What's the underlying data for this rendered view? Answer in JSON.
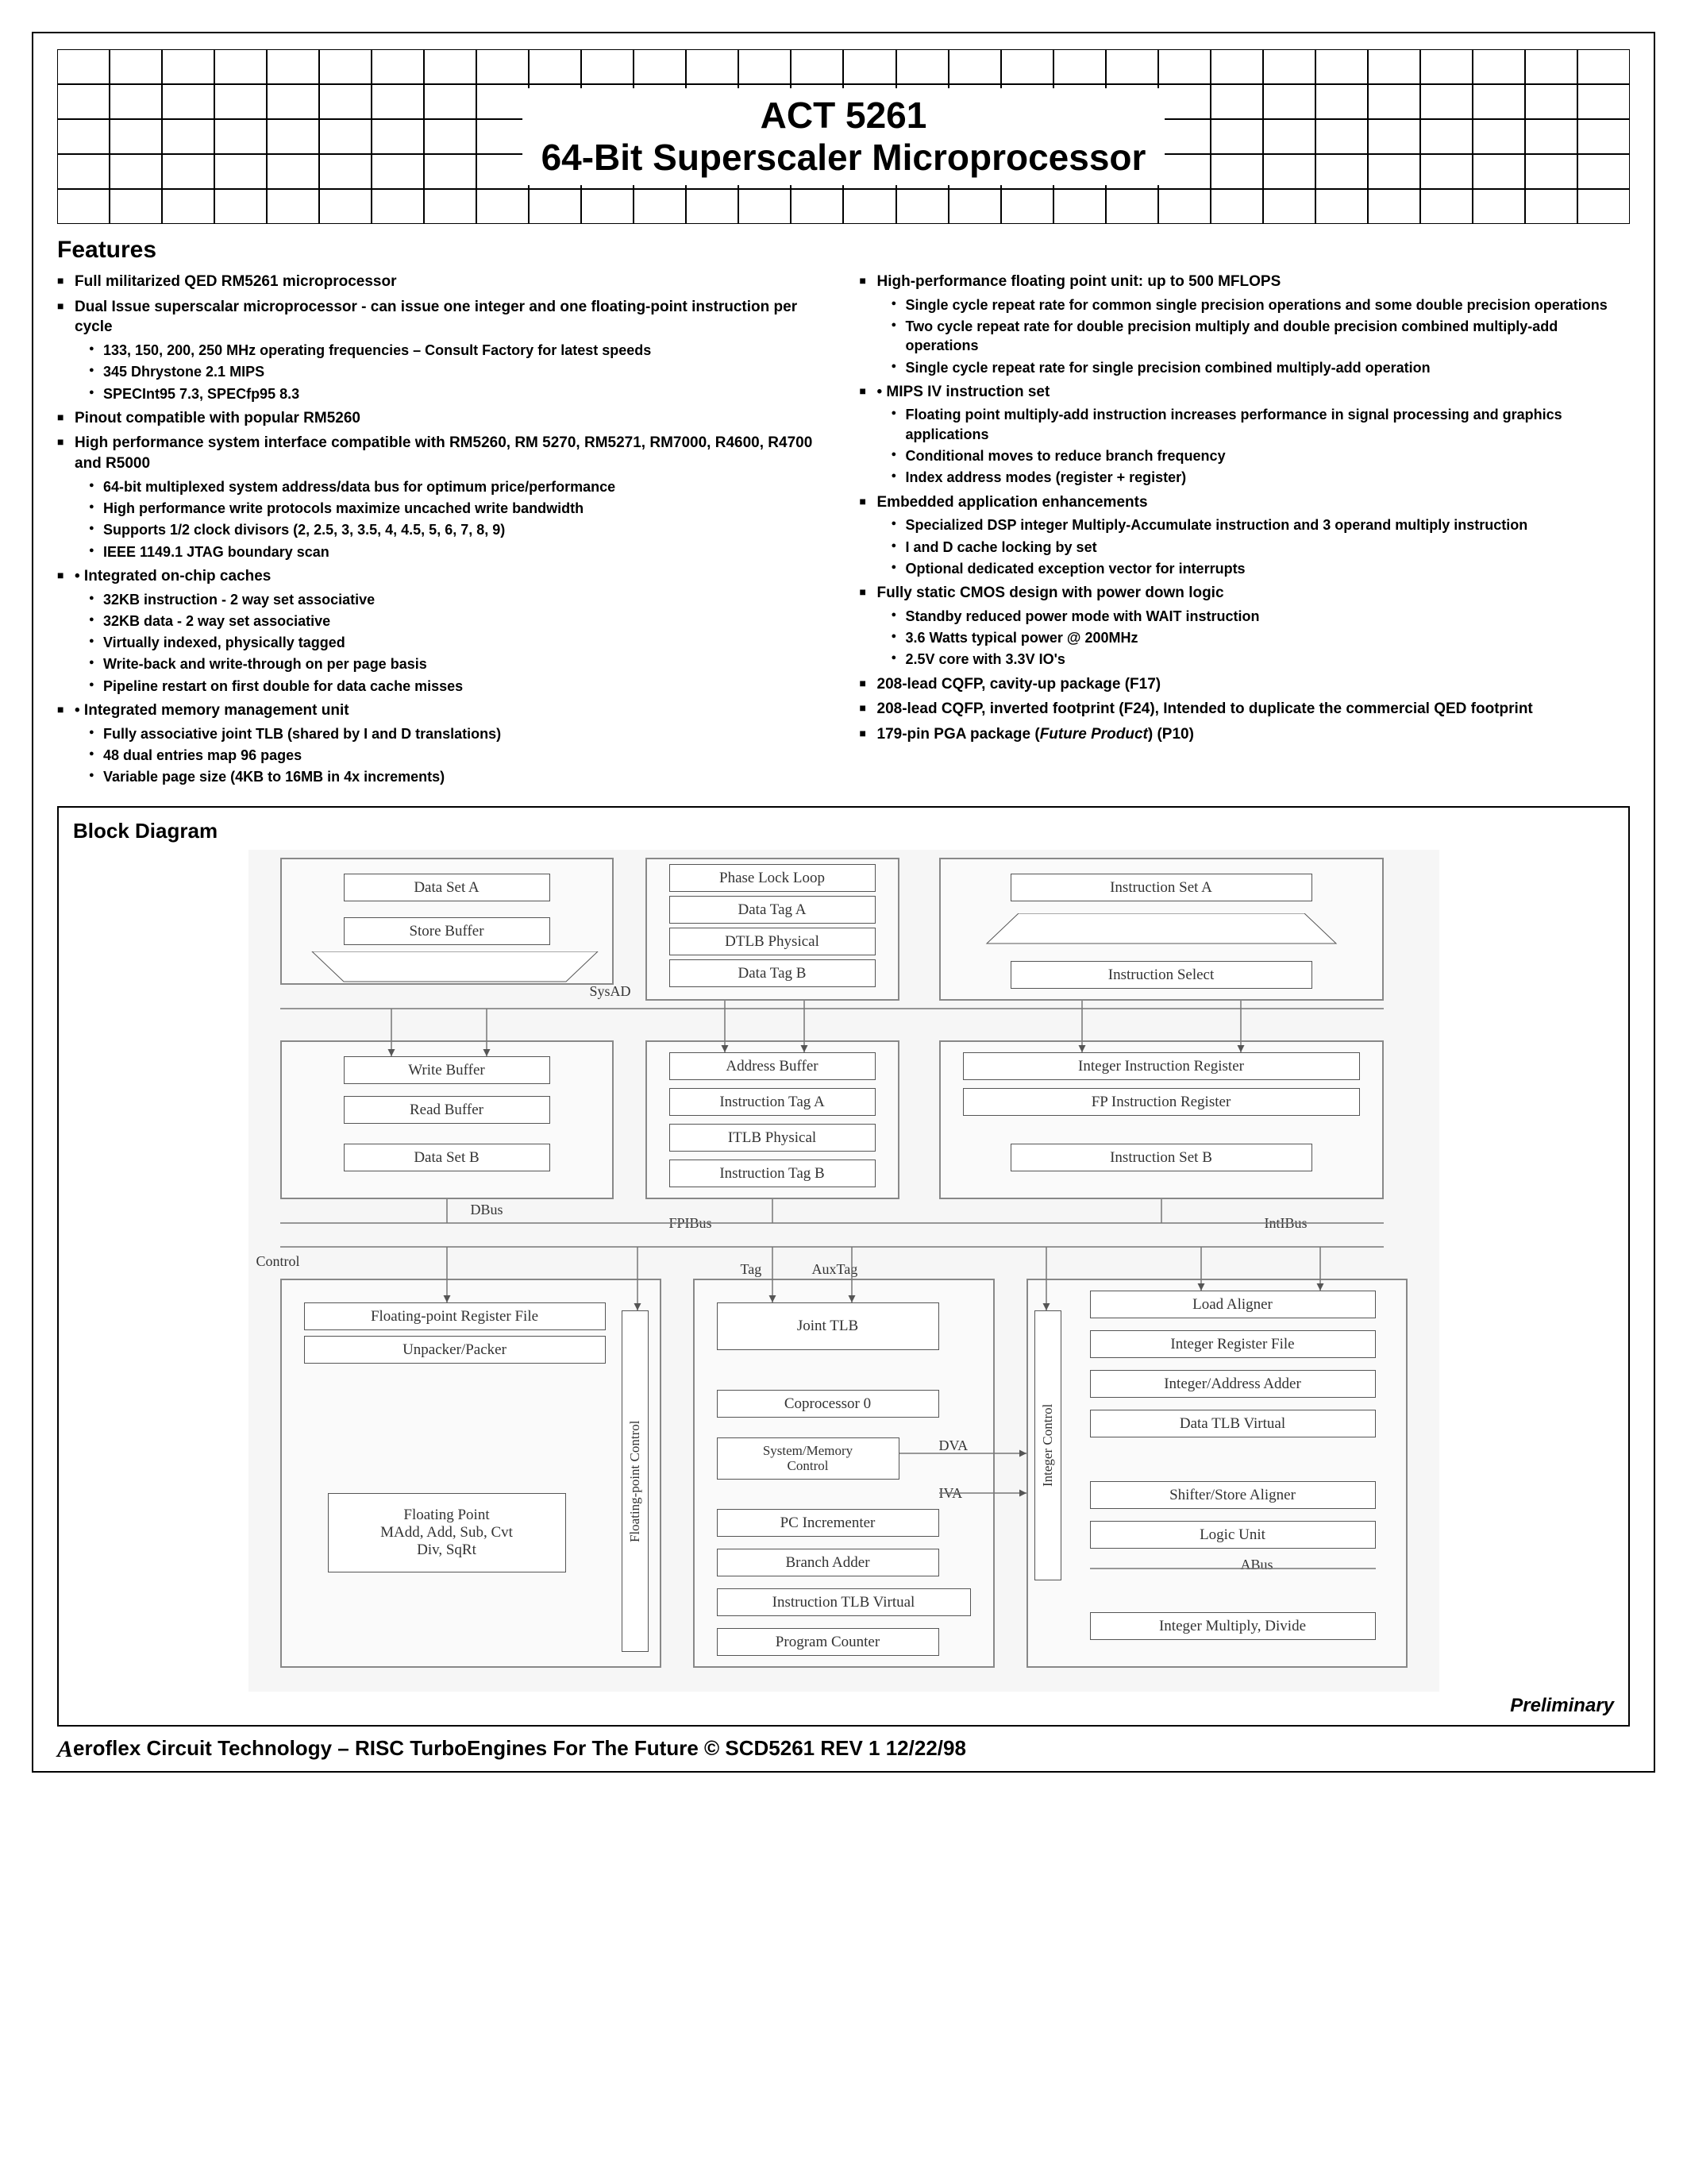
{
  "title": {
    "line1": "ACT 5261",
    "line2": "64-Bit Superscaler Microprocessor"
  },
  "features_heading": "Features",
  "left_column": [
    {
      "text": "Full militarized QED RM5261 microprocessor"
    },
    {
      "text": "Dual Issue superscalar microprocessor - can issue one integer and one floating-point instruction per cycle",
      "sub": [
        "133, 150, 200, 250 MHz operating frequencies – Consult Factory for latest speeds",
        "345 Dhrystone 2.1 MIPS",
        "SPECInt95 7.3, SPECfp95 8.3"
      ]
    },
    {
      "text": "Pinout compatible with popular RM5260"
    },
    {
      "text": "High performance system interface compatible with RM5260, RM 5270, RM5271, RM7000, R4600, R4700 and R5000",
      "sub": [
        "64-bit multiplexed system address/data bus for optimum price/performance",
        "High performance write protocols maximize uncached write bandwidth",
        "Supports 1/2 clock divisors (2, 2.5, 3, 3.5, 4, 4.5, 5, 6, 7, 8, 9)",
        "IEEE 1149.1 JTAG boundary scan"
      ]
    },
    {
      "text": "• Integrated on-chip caches",
      "sub": [
        "32KB instruction - 2 way set associative",
        "32KB data - 2 way set associative",
        "Virtually indexed, physically tagged",
        "Write-back and write-through on per page basis",
        "Pipeline restart on first double for data cache misses"
      ]
    },
    {
      "text": "• Integrated memory management unit",
      "sub": [
        "Fully associative joint TLB (shared by I and D translations)",
        "48 dual entries map 96 pages",
        "Variable page size (4KB to 16MB in 4x increments)"
      ]
    }
  ],
  "right_column": [
    {
      "text": "High-performance floating point unit: up to 500 MFLOPS",
      "sub": [
        "Single cycle repeat rate for common single precision operations and some double precision operations",
        "Two cycle repeat rate for double precision multiply and double precision combined multiply-add operations",
        "Single cycle repeat rate for single precision combined multiply-add operation"
      ]
    },
    {
      "text": "• MIPS IV instruction set",
      "sub": [
        "Floating point multiply-add instruction increases performance in signal processing and graphics applications",
        "Conditional moves to reduce branch frequency",
        "Index address modes (register + register)"
      ]
    },
    {
      "text": "Embedded application enhancements",
      "sub": [
        "Specialized DSP integer Multiply-Accumulate instruction and 3 operand multiply instruction",
        "I and D cache locking by set",
        "Optional dedicated exception vector for interrupts"
      ]
    },
    {
      "text": "Fully static CMOS design with power down logic",
      "sub": [
        "Standby reduced power mode with WAIT instruction",
        "3.6 Watts typical power @ 200MHz",
        "2.5V core with 3.3V IO's"
      ]
    },
    {
      "text": "208-lead CQFP, cavity-up package (F17)"
    },
    {
      "text": "208-lead CQFP, inverted footprint (F24), Intended to duplicate the commercial QED footprint"
    },
    {
      "text_html": "179-pin PGA package (<span class='italic'>Future Product</span>) (P10)"
    }
  ],
  "block_diagram": {
    "title": "Block Diagram",
    "boxes": {
      "data_set_a": "Data Set A",
      "store_buffer": "Store Buffer",
      "phase_lock_loop": "Phase Lock Loop",
      "data_tag_a": "Data Tag A",
      "dtlb_physical": "DTLB Physical",
      "data_tag_b": "Data Tag B",
      "instruction_set_a": "Instruction Set A",
      "instruction_select": "Instruction Select",
      "write_buffer": "Write Buffer",
      "read_buffer": "Read Buffer",
      "data_set_b": "Data Set B",
      "address_buffer": "Address Buffer",
      "instruction_tag_a": "Instruction Tag A",
      "itlb_physical": "ITLB Physical",
      "instruction_tag_b": "Instruction Tag B",
      "integer_instr_reg": "Integer Instruction Register",
      "fp_instr_reg": "FP Instruction Register",
      "instruction_set_b": "Instruction Set B",
      "fp_reg_file": "Floating-point Register File",
      "unpacker": "Unpacker/Packer",
      "floating_point": "Floating Point\nMAdd, Add, Sub, Cvt\nDiv, SqRt",
      "joint_tlb": "Joint TLB",
      "coprocessor0": "Coprocessor 0",
      "sys_mem_ctrl": "System/Memory\nControl",
      "pc_incrementer": "PC Incrementer",
      "branch_adder": "Branch Adder",
      "instr_tlb_virtual": "Instruction TLB Virtual",
      "program_counter": "Program Counter",
      "load_aligner": "Load Aligner",
      "int_reg_file": "Integer Register File",
      "int_addr_adder": "Integer/Address Adder",
      "data_tlb_virtual": "Data TLB Virtual",
      "shifter_store": "Shifter/Store Aligner",
      "logic_unit": "Logic Unit",
      "int_mult_div": "Integer Multiply, Divide"
    },
    "labels": {
      "sysad": "SysAD",
      "dbus": "DBus",
      "fpibus": "FPIBus",
      "intibus": "IntIBus",
      "control": "Control",
      "tag": "Tag",
      "auxtag": "AuxTag",
      "dva": "DVA",
      "iva": "IVA",
      "abus": "ABus",
      "fp_control": "Floating-point Control",
      "int_control": "Integer Control"
    },
    "preliminary": "Preliminary"
  },
  "footer": {
    "company_prefix": "A",
    "company": "eroflex Circuit Technology",
    "tagline": " – RISC TurboEngines For The Future © SCD5261 REV 1  12/22/98"
  }
}
